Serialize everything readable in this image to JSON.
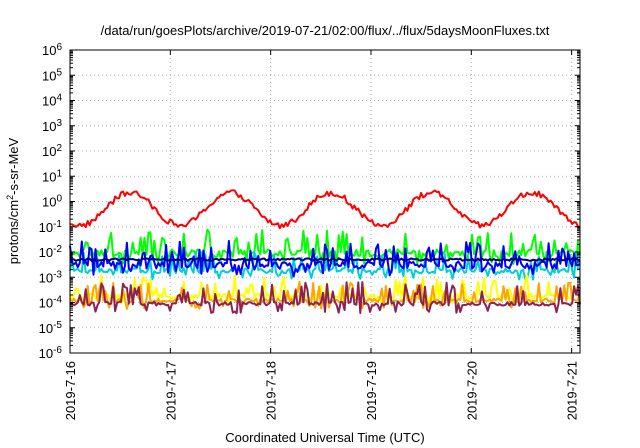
{
  "chart_data": {
    "type": "line",
    "title": "/data/run/goesPlots/archive/2019-07-21/02:00/flux/../flux/5daysMoonFluxes.txt",
    "xlabel": "Coordinated Universal Time (UTC)",
    "ylabel": {
      "prefix": "protons/cm",
      "sup": "2",
      "suffix": "-s-sr-MeV"
    },
    "y_scale": "log",
    "ylim": [
      1e-06,
      1000000.0
    ],
    "y_ticks": [
      {
        "exp": -6
      },
      {
        "exp": -5
      },
      {
        "exp": -4
      },
      {
        "exp": -3
      },
      {
        "exp": -2
      },
      {
        "exp": -1
      },
      {
        "exp": 0
      },
      {
        "exp": 1
      },
      {
        "exp": 2
      },
      {
        "exp": 3
      },
      {
        "exp": 4
      },
      {
        "exp": 5
      },
      {
        "exp": 6
      }
    ],
    "y_tick_base": "10",
    "xlim": [
      "2019-07-16T00:00",
      "2019-07-21T02:00"
    ],
    "x_ticks": [
      {
        "t": "2019-07-16T00:00",
        "label": "2019-7-16"
      },
      {
        "t": "2019-07-17T00:00",
        "label": "2019-7-17"
      },
      {
        "t": "2019-07-18T00:00",
        "label": "2019-7-18"
      },
      {
        "t": "2019-07-19T00:00",
        "label": "2019-7-19"
      },
      {
        "t": "2019-07-20T00:00",
        "label": "2019-7-20"
      },
      {
        "t": "2019-07-21T00:00",
        "label": "2019-7-21"
      }
    ],
    "grid": true,
    "series": [
      {
        "color": "#ff0000",
        "baseline": 0.5,
        "variation": "diurnal",
        "amplitude": 0.65,
        "noise": 0.12
      },
      {
        "color": "#00ff00",
        "baseline": 0.009,
        "variation": "spiky",
        "amplitude": 0.6,
        "noise": 0.15
      },
      {
        "color": "#00ced1",
        "baseline": 0.0018,
        "variation": "spiky",
        "amplitude": 0.5,
        "noise": 0.1
      },
      {
        "color": "#0000ff",
        "baseline": 0.003,
        "variation": "spiky",
        "amplitude": 0.6,
        "noise": 0.15
      },
      {
        "color": "#000080",
        "baseline": 0.005,
        "variation": "flat",
        "amplitude": 0.1,
        "noise": 0.05
      },
      {
        "color": "#ffff00",
        "baseline": 0.00018,
        "variation": "spiky",
        "amplitude": 0.55,
        "noise": 0.1
      },
      {
        "color": "#ffa500",
        "baseline": 0.00012,
        "variation": "spiky",
        "amplitude": 0.5,
        "noise": 0.08
      },
      {
        "color": "#8b2252",
        "baseline": 9e-05,
        "variation": "spiky",
        "amplitude": 0.6,
        "noise": 0.08
      }
    ]
  }
}
